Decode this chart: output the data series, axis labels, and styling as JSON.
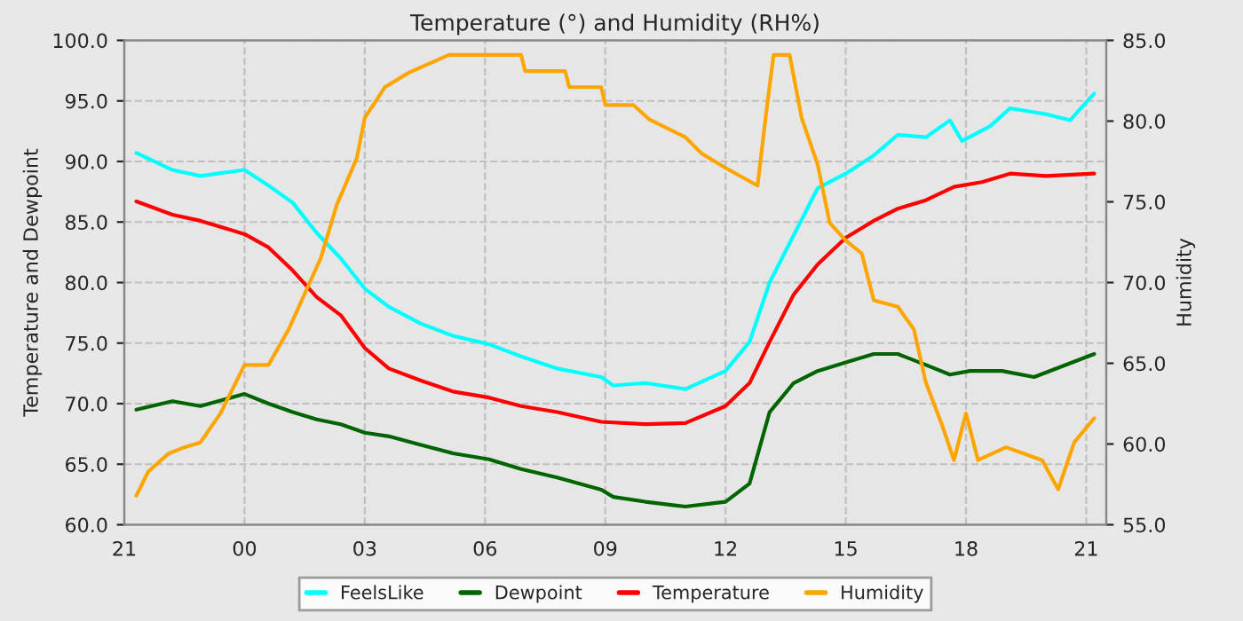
{
  "chart_data": {
    "type": "line",
    "title": "Temperature (°) and Humidity (RH%)",
    "ylabel": "Temperature and Dewpoint",
    "y2label": "Humidity",
    "xlim": [
      "2000-01-01T21:00",
      "2000-01-02T21:30"
    ],
    "xticks": [
      {
        "value": "2000-01-01T21:00",
        "label": "21"
      },
      {
        "value": "2000-01-02T00:00",
        "label": "00"
      },
      {
        "value": "2000-01-02T03:00",
        "label": "03"
      },
      {
        "value": "2000-01-02T06:00",
        "label": "06"
      },
      {
        "value": "2000-01-02T09:00",
        "label": "09"
      },
      {
        "value": "2000-01-02T12:00",
        "label": "12"
      },
      {
        "value": "2000-01-02T15:00",
        "label": "15"
      },
      {
        "value": "2000-01-02T18:00",
        "label": "18"
      },
      {
        "value": "2000-01-02T21:00",
        "label": "21"
      }
    ],
    "ylim": [
      60,
      100
    ],
    "yticks": [
      {
        "value": 60,
        "label": "60.0"
      },
      {
        "value": 65,
        "label": "65.0"
      },
      {
        "value": 70,
        "label": "70.0"
      },
      {
        "value": 75,
        "label": "75.0"
      },
      {
        "value": 80,
        "label": "80.0"
      },
      {
        "value": 85,
        "label": "85.0"
      },
      {
        "value": 90,
        "label": "90.0"
      },
      {
        "value": 95,
        "label": "95.0"
      },
      {
        "value": 100,
        "label": "100.0"
      }
    ],
    "y2lim": [
      55,
      85
    ],
    "y2ticks": [
      {
        "value": 55,
        "label": "55.0"
      },
      {
        "value": 60,
        "label": "60.0"
      },
      {
        "value": 65,
        "label": "65.0"
      },
      {
        "value": 70,
        "label": "70.0"
      },
      {
        "value": 75,
        "label": "75.0"
      },
      {
        "value": 80,
        "label": "80.0"
      },
      {
        "value": 85,
        "label": "85.0"
      }
    ],
    "grid": true,
    "legend": "bottom",
    "marker": "none",
    "line_style": "solid",
    "series": [
      {
        "name": "FeelsLike",
        "color": "#00ffff",
        "x": [
          "2000-01-01T21:18",
          "2000-01-01T22:12",
          "2000-01-01T22:54",
          "2000-01-02T00:00",
          "2000-01-02T00:36",
          "2000-01-02T01:12",
          "2000-01-02T01:48",
          "2000-01-02T02:24",
          "2000-01-02T03:00",
          "2000-01-02T03:36",
          "2000-01-02T04:24",
          "2000-01-02T05:12",
          "2000-01-02T06:06",
          "2000-01-02T06:54",
          "2000-01-02T07:48",
          "2000-01-02T08:54",
          "2000-01-02T09:12",
          "2000-01-02T10:00",
          "2000-01-02T11:00",
          "2000-01-02T12:00",
          "2000-01-02T12:36",
          "2000-01-02T13:06",
          "2000-01-02T13:42",
          "2000-01-02T14:18",
          "2000-01-02T15:00",
          "2000-01-02T15:42",
          "2000-01-02T16:18",
          "2000-01-02T17:00",
          "2000-01-02T17:36",
          "2000-01-02T17:54",
          "2000-01-02T18:36",
          "2000-01-02T19:06",
          "2000-01-02T20:00",
          "2000-01-02T20:36",
          "2000-01-02T21:00",
          "2000-01-02T21:12"
        ],
        "values": [
          90.7,
          89.3,
          88.8,
          89.3,
          88.0,
          86.6,
          84.1,
          82.0,
          79.5,
          78.0,
          76.6,
          75.6,
          74.9,
          73.9,
          72.9,
          72.2,
          71.5,
          71.7,
          71.2,
          72.7,
          75.1,
          80.0,
          83.9,
          87.8,
          89.0,
          90.5,
          92.2,
          92.0,
          93.4,
          91.7,
          92.9,
          94.4,
          93.9,
          93.4,
          94.9,
          95.6
        ]
      },
      {
        "name": "Dewpoint",
        "color": "#006400",
        "x": [
          "2000-01-01T21:18",
          "2000-01-01T22:12",
          "2000-01-01T22:54",
          "2000-01-02T00:00",
          "2000-01-02T00:36",
          "2000-01-02T01:12",
          "2000-01-02T01:48",
          "2000-01-02T02:24",
          "2000-01-02T03:00",
          "2000-01-02T03:36",
          "2000-01-02T04:24",
          "2000-01-02T05:12",
          "2000-01-02T06:06",
          "2000-01-02T06:54",
          "2000-01-02T07:48",
          "2000-01-02T08:54",
          "2000-01-02T09:12",
          "2000-01-02T10:00",
          "2000-01-02T11:00",
          "2000-01-02T12:00",
          "2000-01-02T12:36",
          "2000-01-02T13:06",
          "2000-01-02T13:42",
          "2000-01-02T14:18",
          "2000-01-02T15:00",
          "2000-01-02T15:42",
          "2000-01-02T16:18",
          "2000-01-02T17:00",
          "2000-01-02T17:36",
          "2000-01-02T18:06",
          "2000-01-02T18:54",
          "2000-01-02T19:42",
          "2000-01-02T21:12"
        ],
        "values": [
          69.5,
          70.2,
          69.8,
          70.8,
          70.0,
          69.3,
          68.7,
          68.3,
          67.6,
          67.3,
          66.6,
          65.9,
          65.4,
          64.6,
          63.9,
          62.9,
          62.3,
          61.9,
          61.5,
          61.9,
          63.4,
          69.3,
          71.7,
          72.7,
          73.4,
          74.1,
          74.1,
          73.2,
          72.4,
          72.7,
          72.7,
          72.2,
          74.1
        ]
      },
      {
        "name": "Temperature",
        "color": "#ff0000",
        "x": [
          "2000-01-01T21:18",
          "2000-01-01T22:12",
          "2000-01-01T22:54",
          "2000-01-02T00:00",
          "2000-01-02T00:36",
          "2000-01-02T01:12",
          "2000-01-02T01:48",
          "2000-01-02T02:24",
          "2000-01-02T03:00",
          "2000-01-02T03:36",
          "2000-01-02T04:24",
          "2000-01-02T05:12",
          "2000-01-02T06:06",
          "2000-01-02T06:54",
          "2000-01-02T07:48",
          "2000-01-02T08:54",
          "2000-01-02T10:00",
          "2000-01-02T11:00",
          "2000-01-02T12:00",
          "2000-01-02T12:36",
          "2000-01-02T13:06",
          "2000-01-02T13:42",
          "2000-01-02T14:18",
          "2000-01-02T15:00",
          "2000-01-02T15:42",
          "2000-01-02T16:18",
          "2000-01-02T17:00",
          "2000-01-02T17:42",
          "2000-01-02T18:24",
          "2000-01-02T19:06",
          "2000-01-02T20:00",
          "2000-01-02T21:12"
        ],
        "values": [
          86.7,
          85.6,
          85.1,
          84.0,
          82.9,
          81.0,
          78.8,
          77.3,
          74.6,
          72.9,
          71.9,
          71.0,
          70.5,
          69.8,
          69.3,
          68.5,
          68.3,
          68.4,
          69.8,
          71.7,
          75.1,
          79.0,
          81.5,
          83.7,
          85.1,
          86.1,
          86.8,
          87.9,
          88.3,
          89.0,
          88.8,
          89.0
        ]
      },
      {
        "name": "Humidity",
        "color": "#ffa500",
        "axis": "y2",
        "x": [
          "2000-01-01T21:18",
          "2000-01-01T21:36",
          "2000-01-01T22:06",
          "2000-01-01T22:30",
          "2000-01-01T22:54",
          "2000-01-01T23:24",
          "2000-01-02T00:00",
          "2000-01-02T00:36",
          "2000-01-02T01:06",
          "2000-01-02T01:30",
          "2000-01-02T01:54",
          "2000-01-02T02:18",
          "2000-01-02T02:48",
          "2000-01-02T03:00",
          "2000-01-02T03:30",
          "2000-01-02T04:06",
          "2000-01-02T05:06",
          "2000-01-02T06:54",
          "2000-01-02T07:00",
          "2000-01-02T08:00",
          "2000-01-02T08:06",
          "2000-01-02T08:54",
          "2000-01-02T09:00",
          "2000-01-02T09:42",
          "2000-01-02T10:06",
          "2000-01-02T11:00",
          "2000-01-02T11:24",
          "2000-01-02T12:00",
          "2000-01-02T12:48",
          "2000-01-02T13:00",
          "2000-01-02T13:12",
          "2000-01-02T13:36",
          "2000-01-02T13:54",
          "2000-01-02T14:18",
          "2000-01-02T14:36",
          "2000-01-02T15:00",
          "2000-01-02T15:24",
          "2000-01-02T15:42",
          "2000-01-02T16:18",
          "2000-01-02T16:42",
          "2000-01-02T17:00",
          "2000-01-02T17:24",
          "2000-01-02T17:42",
          "2000-01-02T18:00",
          "2000-01-02T18:18",
          "2000-01-02T19:00",
          "2000-01-02T19:54",
          "2000-01-02T20:18",
          "2000-01-02T20:42",
          "2000-01-02T21:12"
        ],
        "values": [
          56.8,
          58.3,
          59.4,
          59.8,
          60.1,
          61.9,
          64.9,
          64.9,
          67.1,
          69.3,
          71.5,
          74.8,
          77.7,
          80.2,
          82.1,
          83.0,
          84.1,
          84.1,
          83.1,
          83.1,
          82.1,
          82.1,
          81.0,
          81.0,
          80.1,
          79.0,
          78.0,
          77.1,
          76.0,
          80.2,
          84.1,
          84.1,
          80.2,
          77.3,
          73.7,
          72.6,
          71.8,
          68.9,
          68.5,
          67.1,
          63.8,
          61.2,
          59.0,
          61.9,
          59.0,
          59.8,
          59.0,
          57.2,
          60.1,
          61.6
        ]
      }
    ]
  }
}
